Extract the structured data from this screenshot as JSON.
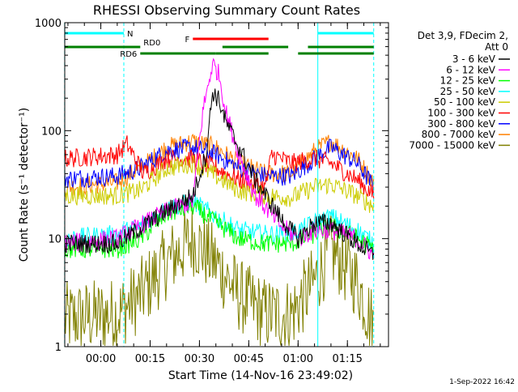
{
  "chart_data": {
    "type": "line",
    "title": "RHESSI Observing Summary Count Rates",
    "xlabel": "Start Time (14-Nov-16 23:49:02)",
    "ylabel": "Count Rate (s⁻¹ detector⁻¹)",
    "y_scale": "log",
    "ylim": [
      1,
      1000
    ],
    "xlim": [
      "23:49:02",
      "01:27:30"
    ],
    "x_tick_labels": [
      "00:00",
      "00:15",
      "00:30",
      "00:45",
      "01:00",
      "01:15"
    ],
    "y_tick_labels": [
      "1",
      "10",
      "100",
      "1000"
    ],
    "legend_header": [
      "Det 3,9, FDecim 2,",
      "Att 0"
    ],
    "legend_position": "right",
    "timestamp": "1-Sep-2022 16:42",
    "flags": [
      {
        "label": "N",
        "color": "#00ffff",
        "intervals": [
          [
            "23:49",
            "00:07"
          ],
          [
            "01:06",
            "01:23"
          ]
        ]
      },
      {
        "label": "F",
        "color": "#ff0000",
        "intervals": [
          [
            "00:28",
            "00:51"
          ]
        ]
      },
      {
        "label": "RD0",
        "color": "#008000",
        "intervals": [
          [
            "23:49",
            "00:12"
          ],
          [
            "00:37",
            "00:57"
          ],
          [
            "01:03",
            "01:23"
          ]
        ]
      },
      {
        "label": "RD6",
        "color": "#008000",
        "intervals": [
          [
            "00:12",
            "00:35"
          ],
          [
            "00:35",
            "00:51"
          ],
          [
            "01:00",
            "01:23"
          ]
        ]
      }
    ],
    "series": [
      {
        "name": "3 - 6 keV",
        "color": "#000000",
        "x": [
          "23:49",
          "00:05",
          "00:20",
          "00:28",
          "00:32",
          "00:34",
          "00:36",
          "00:38",
          "00:42",
          "00:47",
          "00:55",
          "01:00",
          "01:05",
          "01:10",
          "01:18",
          "01:23"
        ],
        "y": [
          9,
          9,
          18,
          25,
          60,
          230,
          190,
          120,
          70,
          35,
          15,
          10,
          14,
          14,
          9,
          7
        ]
      },
      {
        "name": "6 - 12 keV",
        "color": "#ff00ff",
        "x": [
          "23:49",
          "00:05",
          "00:20",
          "00:28",
          "00:31",
          "00:34",
          "00:36",
          "00:38",
          "00:42",
          "00:47",
          "00:55",
          "01:00",
          "01:05",
          "01:10",
          "01:18",
          "01:23"
        ],
        "y": [
          9,
          10,
          18,
          22,
          150,
          420,
          330,
          150,
          60,
          25,
          13,
          10,
          12,
          12,
          10,
          7
        ]
      },
      {
        "name": "12 - 25 keV",
        "color": "#00ff00",
        "x": [
          "23:49",
          "00:05",
          "00:12",
          "00:20",
          "00:28",
          "00:35",
          "00:42",
          "00:50",
          "00:58",
          "01:05",
          "01:10",
          "01:18",
          "01:23"
        ],
        "y": [
          8,
          8,
          10,
          17,
          20,
          14,
          10,
          9,
          9,
          11,
          13,
          10,
          8
        ]
      },
      {
        "name": "25 - 50 keV",
        "color": "#00ffff",
        "x": [
          "23:49",
          "00:05",
          "00:12",
          "00:20",
          "00:28",
          "00:35",
          "00:42",
          "00:50",
          "00:58",
          "01:05",
          "01:10",
          "01:18",
          "01:23"
        ],
        "y": [
          10,
          11,
          13,
          19,
          22,
          16,
          12,
          11,
          11,
          14,
          16,
          12,
          9
        ]
      },
      {
        "name": "50 - 100 keV",
        "color": "#cccc00",
        "x": [
          "23:49",
          "00:05",
          "00:12",
          "00:20",
          "00:28",
          "00:35",
          "00:42",
          "00:50",
          "00:58",
          "01:05",
          "01:10",
          "01:18",
          "01:23"
        ],
        "y": [
          25,
          25,
          28,
          45,
          50,
          38,
          28,
          25,
          24,
          30,
          32,
          25,
          20
        ]
      },
      {
        "name": "100 - 300 keV",
        "color": "#ff0000",
        "x": [
          "23:49",
          "00:05",
          "00:08",
          "00:13",
          "00:20",
          "00:28",
          "00:35",
          "00:42",
          "00:50",
          "00:52",
          "00:58",
          "01:05",
          "01:10",
          "01:18",
          "01:23"
        ],
        "y": [
          55,
          60,
          75,
          40,
          55,
          55,
          45,
          35,
          30,
          60,
          50,
          55,
          50,
          35,
          25
        ]
      },
      {
        "name": "300 - 800 keV",
        "color": "#0000ff",
        "x": [
          "23:49",
          "00:05",
          "00:12",
          "00:20",
          "00:28",
          "00:35",
          "00:42",
          "00:50",
          "00:58",
          "01:05",
          "01:10",
          "01:18",
          "01:23"
        ],
        "y": [
          36,
          38,
          45,
          65,
          70,
          60,
          45,
          38,
          38,
          55,
          70,
          50,
          30
        ]
      },
      {
        "name": "800 - 7000 keV",
        "color": "#ff8000",
        "x": [
          "23:49",
          "00:05",
          "00:12",
          "00:20",
          "00:28",
          "00:35",
          "00:42",
          "00:50",
          "00:58",
          "01:05",
          "01:10",
          "01:18",
          "01:23"
        ],
        "y": [
          30,
          33,
          45,
          70,
          80,
          70,
          50,
          40,
          40,
          65,
          80,
          55,
          33
        ]
      },
      {
        "name": "7000 - 15000 keV",
        "color": "#808000",
        "x": [
          "23:49",
          "00:05",
          "00:12",
          "00:20",
          "00:28",
          "00:35",
          "00:42",
          "00:50",
          "00:58",
          "01:05",
          "01:10",
          "01:18",
          "01:23"
        ],
        "y": [
          1.8,
          2,
          3,
          6,
          10,
          6,
          3,
          2,
          2,
          4,
          8,
          4,
          1.5
        ]
      }
    ]
  }
}
